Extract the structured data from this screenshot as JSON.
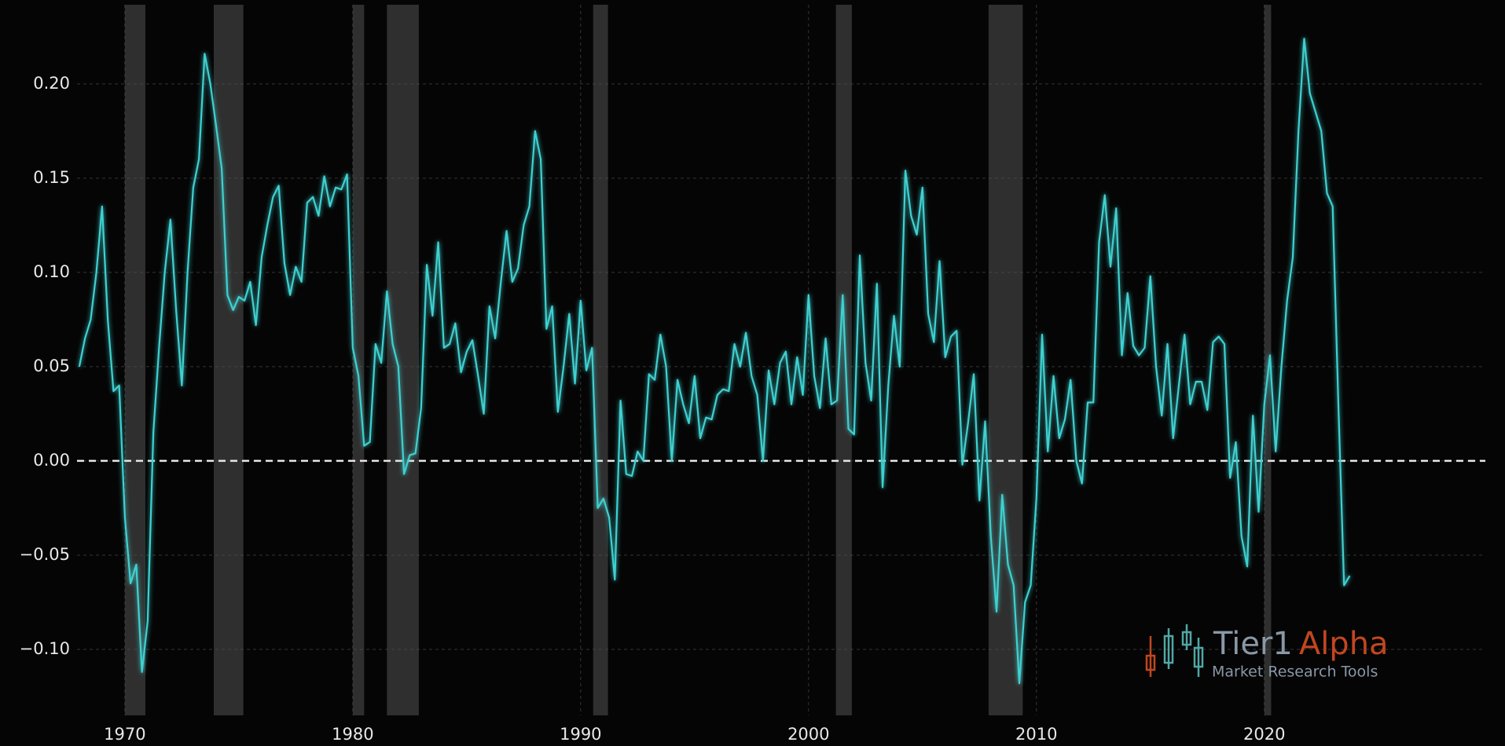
{
  "chart_data": {
    "type": "line",
    "x": [
      1968,
      1968.25,
      1968.5,
      1968.75,
      1969,
      1969.25,
      1969.5,
      1969.75,
      1970,
      1970.25,
      1970.5,
      1970.75,
      1971,
      1971.25,
      1971.5,
      1971.75,
      1972,
      1972.25,
      1972.5,
      1972.75,
      1973,
      1973.25,
      1973.5,
      1973.75,
      1974,
      1974.25,
      1974.5,
      1974.75,
      1975,
      1975.25,
      1975.5,
      1975.75,
      1976,
      1976.25,
      1976.5,
      1976.75,
      1977,
      1977.25,
      1977.5,
      1977.75,
      1978,
      1978.25,
      1978.5,
      1978.75,
      1979,
      1979.25,
      1979.5,
      1979.75,
      1980,
      1980.25,
      1980.5,
      1980.75,
      1981,
      1981.25,
      1981.5,
      1981.75,
      1982,
      1982.25,
      1982.5,
      1982.75,
      1983,
      1983.25,
      1983.5,
      1983.75,
      1984,
      1984.25,
      1984.5,
      1984.75,
      1985,
      1985.25,
      1985.5,
      1985.75,
      1986,
      1986.25,
      1986.5,
      1986.75,
      1987,
      1987.25,
      1987.5,
      1987.75,
      1988,
      1988.25,
      1988.5,
      1988.75,
      1989,
      1989.25,
      1989.5,
      1989.75,
      1990,
      1990.25,
      1990.5,
      1990.75,
      1991,
      1991.25,
      1991.5,
      1991.75,
      1992,
      1992.25,
      1992.5,
      1992.75,
      1993,
      1993.25,
      1993.5,
      1993.75,
      1994,
      1994.25,
      1994.5,
      1994.75,
      1995,
      1995.25,
      1995.5,
      1995.75,
      1996,
      1996.25,
      1996.5,
      1996.75,
      1997,
      1997.25,
      1997.5,
      1997.75,
      1998,
      1998.25,
      1998.5,
      1998.75,
      1999,
      1999.25,
      1999.5,
      1999.75,
      2000,
      2000.25,
      2000.5,
      2000.75,
      2001,
      2001.25,
      2001.5,
      2001.75,
      2002,
      2002.25,
      2002.5,
      2002.75,
      2003,
      2003.25,
      2003.5,
      2003.75,
      2004,
      2004.25,
      2004.5,
      2004.75,
      2005,
      2005.25,
      2005.5,
      2005.75,
      2006,
      2006.25,
      2006.5,
      2006.75,
      2007,
      2007.25,
      2007.5,
      2007.75,
      2008,
      2008.25,
      2008.5,
      2008.75,
      2009,
      2009.25,
      2009.5,
      2009.75,
      2010,
      2010.25,
      2010.5,
      2010.75,
      2011,
      2011.25,
      2011.5,
      2011.75,
      2012,
      2012.25,
      2012.5,
      2012.75,
      2013,
      2013.25,
      2013.5,
      2013.75,
      2014,
      2014.25,
      2014.5,
      2014.75,
      2015,
      2015.25,
      2015.5,
      2015.75,
      2016,
      2016.25,
      2016.5,
      2016.75,
      2017,
      2017.25,
      2017.5,
      2017.75,
      2018,
      2018.25,
      2018.5,
      2018.75,
      2019,
      2019.25,
      2019.5,
      2019.75,
      2020,
      2020.25,
      2020.5,
      2020.75,
      2021,
      2021.25,
      2021.5,
      2021.75,
      2022,
      2022.25,
      2022.5,
      2022.75,
      2023,
      2023.25,
      2023.5,
      2023.75
    ],
    "series": [
      {
        "color": "#3fd0d0",
        "values": [
          0.05,
          0.065,
          0.075,
          0.1,
          0.135,
          0.075,
          0.037,
          0.04,
          -0.03,
          -0.065,
          -0.055,
          -0.112,
          -0.085,
          0.015,
          0.06,
          0.1,
          0.128,
          0.08,
          0.04,
          0.1,
          0.145,
          0.16,
          0.216,
          0.2,
          0.178,
          0.155,
          0.088,
          0.08,
          0.087,
          0.085,
          0.095,
          0.072,
          0.108,
          0.125,
          0.14,
          0.146,
          0.105,
          0.088,
          0.103,
          0.095,
          0.137,
          0.14,
          0.13,
          0.151,
          0.135,
          0.145,
          0.144,
          0.152,
          0.06,
          0.045,
          0.008,
          0.01,
          0.062,
          0.052,
          0.09,
          0.062,
          0.05,
          -0.007,
          0.003,
          0.004,
          0.028,
          0.104,
          0.077,
          0.116,
          0.06,
          0.062,
          0.073,
          0.047,
          0.058,
          0.064,
          0.045,
          0.025,
          0.082,
          0.065,
          0.095,
          0.122,
          0.095,
          0.102,
          0.125,
          0.135,
          0.175,
          0.16,
          0.07,
          0.082,
          0.026,
          0.05,
          0.078,
          0.041,
          0.085,
          0.048,
          0.06,
          -0.025,
          -0.02,
          -0.03,
          -0.063,
          0.032,
          -0.007,
          -0.008,
          0.005,
          0.0,
          0.046,
          0.043,
          0.067,
          0.05,
          0.0,
          0.043,
          0.03,
          0.02,
          0.045,
          0.012,
          0.023,
          0.022,
          0.035,
          0.038,
          0.037,
          0.062,
          0.05,
          0.068,
          0.045,
          0.035,
          0.0,
          0.048,
          0.03,
          0.052,
          0.058,
          0.03,
          0.055,
          0.035,
          0.088,
          0.045,
          0.028,
          0.065,
          0.03,
          0.032,
          0.088,
          0.017,
          0.014,
          0.109,
          0.052,
          0.032,
          0.094,
          -0.014,
          0.04,
          0.077,
          0.05,
          0.154,
          0.13,
          0.12,
          0.145,
          0.078,
          0.063,
          0.106,
          0.055,
          0.066,
          0.069,
          -0.002,
          0.02,
          0.046,
          -0.021,
          0.021,
          -0.04,
          -0.08,
          -0.018,
          -0.055,
          -0.066,
          -0.118,
          -0.075,
          -0.066,
          -0.02,
          0.067,
          0.005,
          0.045,
          0.012,
          0.022,
          0.043,
          0.0,
          -0.012,
          0.031,
          0.031,
          0.116,
          0.141,
          0.103,
          0.134,
          0.056,
          0.089,
          0.061,
          0.056,
          0.06,
          0.098,
          0.05,
          0.024,
          0.062,
          0.012,
          0.04,
          0.067,
          0.03,
          0.042,
          0.042,
          0.027,
          0.063,
          0.066,
          0.062,
          -0.009,
          0.01,
          -0.04,
          -0.056,
          0.024,
          -0.027,
          0.03,
          0.056,
          0.005,
          0.05,
          0.085,
          0.108,
          0.175,
          0.224,
          0.195,
          0.185,
          0.175,
          0.142,
          0.135,
          0.03,
          -0.066,
          -0.061
        ]
      }
    ],
    "recessions": [
      [
        1970.0,
        1970.9
      ],
      [
        1973.9,
        1975.2
      ],
      [
        1980.0,
        1980.5
      ],
      [
        1981.5,
        1982.9
      ],
      [
        1990.55,
        1991.2
      ],
      [
        2001.2,
        2001.9
      ],
      [
        2007.9,
        2009.4
      ],
      [
        2020.0,
        2020.3
      ]
    ],
    "hline": 0,
    "xlim": [
      1967.9,
      2029.7
    ],
    "xticks": [
      1970,
      1980,
      1990,
      2000,
      2010,
      2020
    ],
    "ylim": [
      -0.135,
      0.242
    ],
    "yticks": [
      {
        "value": -0.1,
        "label": "−0.10"
      },
      {
        "value": -0.05,
        "label": "−0.05"
      },
      {
        "value": 0,
        "label": "0.00"
      },
      {
        "value": 0.05,
        "label": "0.05"
      },
      {
        "value": 0.1,
        "label": "0.10"
      },
      {
        "value": 0.15,
        "label": "0.15"
      },
      {
        "value": 0.2,
        "label": "0.20"
      }
    ],
    "grid": true,
    "watermark": {
      "brand": "Tier1",
      "brand_accent": "Alpha",
      "tagline": "Market Research Tools"
    }
  }
}
